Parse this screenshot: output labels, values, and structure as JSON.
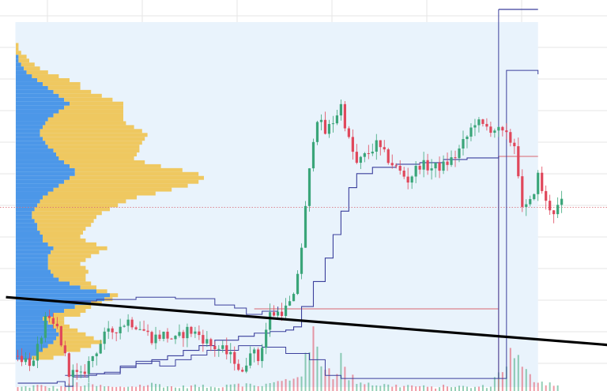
{
  "chart_data": {
    "type": "candlestick",
    "title": "",
    "xlabel": "",
    "ylabel": "",
    "ylim": [
      60,
      560
    ],
    "x_count": 150,
    "grid": true,
    "legend": "none",
    "colors": {
      "up": "#3aa579",
      "down": "#e0475b",
      "profile_up": "#4c97e8",
      "profile_down": "#efc860",
      "band": "#3b3f9c",
      "trendline": "#000000",
      "level_line": "#d9646e",
      "grid": "#e6e6e6",
      "session_bg": "#e9f3fc"
    },
    "price_path": [
      [
        0,
        105
      ],
      [
        4,
        95
      ],
      [
        7,
        150
      ],
      [
        10,
        140
      ],
      [
        13,
        85
      ],
      [
        16,
        78
      ],
      [
        19,
        105
      ],
      [
        22,
        130
      ],
      [
        25,
        140
      ],
      [
        28,
        150
      ],
      [
        31,
        142
      ],
      [
        34,
        128
      ],
      [
        37,
        132
      ],
      [
        40,
        125
      ],
      [
        43,
        138
      ],
      [
        46,
        132
      ],
      [
        49,
        118
      ],
      [
        52,
        112
      ],
      [
        55,
        100
      ],
      [
        57,
        80
      ],
      [
        59,
        115
      ],
      [
        61,
        100
      ],
      [
        64,
        158
      ],
      [
        66,
        160
      ],
      [
        68,
        165
      ],
      [
        70,
        178
      ],
      [
        72,
        245
      ],
      [
        74,
        340
      ],
      [
        75,
        385
      ],
      [
        76,
        410
      ],
      [
        78,
        390
      ],
      [
        80,
        405
      ],
      [
        82,
        425
      ],
      [
        84,
        380
      ],
      [
        86,
        350
      ],
      [
        88,
        360
      ],
      [
        91,
        375
      ],
      [
        93,
        362
      ],
      [
        96,
        345
      ],
      [
        99,
        330
      ],
      [
        102,
        350
      ],
      [
        105,
        345
      ],
      [
        108,
        348
      ],
      [
        111,
        360
      ],
      [
        114,
        385
      ],
      [
        116,
        405
      ],
      [
        118,
        398
      ],
      [
        121,
        395
      ],
      [
        124,
        385
      ],
      [
        126,
        375
      ],
      [
        127,
        340
      ],
      [
        128,
        290
      ],
      [
        130,
        300
      ],
      [
        132,
        335
      ],
      [
        134,
        300
      ],
      [
        136,
        290
      ],
      [
        138,
        300
      ]
    ],
    "vwap_line": [
      [
        0,
        70
      ],
      [
        10,
        72
      ],
      [
        12,
        66
      ],
      [
        14,
        78
      ],
      [
        18,
        82
      ],
      [
        22,
        84
      ],
      [
        26,
        90
      ],
      [
        30,
        95
      ],
      [
        34,
        100
      ],
      [
        38,
        105
      ],
      [
        42,
        112
      ],
      [
        46,
        118
      ],
      [
        50,
        125
      ],
      [
        56,
        130
      ],
      [
        60,
        134
      ],
      [
        64,
        136
      ],
      [
        68,
        138
      ],
      [
        70,
        142
      ],
      [
        72,
        168
      ],
      [
        75,
        200
      ],
      [
        78,
        230
      ],
      [
        80,
        260
      ],
      [
        82,
        290
      ],
      [
        84,
        320
      ],
      [
        86,
        338
      ],
      [
        90,
        346
      ],
      [
        96,
        350
      ],
      [
        102,
        352
      ],
      [
        108,
        356
      ],
      [
        114,
        358
      ],
      [
        122,
        360
      ]
    ],
    "upper_band": [
      [
        12,
        175
      ],
      [
        20,
        177
      ],
      [
        30,
        180
      ],
      [
        40,
        178
      ],
      [
        50,
        170
      ],
      [
        55,
        166
      ],
      [
        58,
        158
      ],
      [
        62,
        162
      ],
      [
        66,
        168
      ]
    ],
    "lower_band": [
      [
        12,
        80
      ],
      [
        20,
        82
      ],
      [
        26,
        92
      ],
      [
        30,
        98
      ],
      [
        36,
        92
      ],
      [
        40,
        100
      ],
      [
        44,
        106
      ],
      [
        48,
        112
      ],
      [
        56,
        118
      ],
      [
        62,
        116
      ],
      [
        68,
        108
      ],
      [
        74,
        100
      ],
      [
        78,
        80
      ],
      [
        82,
        76
      ],
      [
        122,
        76
      ],
      [
        124,
        470
      ],
      [
        132,
        465
      ]
    ],
    "trendline": [
      [
        -3,
        180
      ],
      [
        152,
        118
      ]
    ],
    "level_line": {
      "y": 295,
      "x_start": 0,
      "x_end": 152
    },
    "vertical_level": {
      "x": 122,
      "y_start": 60,
      "y_end": 360
    },
    "session_box": {
      "x_start": 0,
      "x_end": 132
    },
    "volume_profile": {
      "y_start": 100,
      "step": 5,
      "buy": [
        6,
        8,
        10,
        12,
        14,
        15,
        16,
        15,
        14,
        12,
        10,
        14,
        18,
        22,
        28,
        33,
        35,
        30,
        24,
        20,
        16,
        14,
        13,
        12,
        12,
        12,
        12,
        13,
        14,
        12,
        10,
        10,
        9,
        8,
        8,
        7,
        6,
        6,
        7,
        8,
        9,
        10,
        12,
        14,
        16,
        18,
        20,
        22,
        22,
        20,
        18,
        16,
        15,
        14,
        12,
        11,
        10,
        9,
        9,
        10,
        11,
        12,
        14,
        16,
        18,
        20,
        18,
        16,
        14,
        12,
        10,
        8,
        6,
        4,
        3,
        2,
        1,
        1,
        0,
        0,
        0
      ],
      "sell": [
        8,
        10,
        14,
        16,
        18,
        14,
        10,
        8,
        6,
        6,
        8,
        10,
        8,
        6,
        4,
        3,
        3,
        4,
        6,
        8,
        10,
        12,
        14,
        14,
        12,
        14,
        16,
        18,
        20,
        18,
        16,
        14,
        16,
        18,
        20,
        22,
        24,
        26,
        28,
        30,
        32,
        35,
        40,
        44,
        48,
        50,
        50,
        46,
        40,
        34,
        30,
        28,
        30,
        32,
        34,
        36,
        38,
        40,
        38,
        34,
        30,
        28,
        26,
        24,
        22,
        20,
        18,
        16,
        14,
        12,
        14,
        12,
        10,
        8,
        6,
        5,
        4,
        3,
        2,
        1,
        1
      ]
    },
    "volume": [
      [
        0,
        2
      ],
      [
        5,
        3
      ],
      [
        10,
        2
      ],
      [
        15,
        4
      ],
      [
        20,
        3
      ],
      [
        25,
        2
      ],
      [
        30,
        3
      ],
      [
        35,
        4
      ],
      [
        40,
        2
      ],
      [
        45,
        3
      ],
      [
        50,
        2
      ],
      [
        55,
        5
      ],
      [
        60,
        3
      ],
      [
        64,
        4
      ],
      [
        68,
        6
      ],
      [
        70,
        8
      ],
      [
        72,
        12
      ],
      [
        73,
        16
      ],
      [
        74,
        22
      ],
      [
        75,
        30
      ],
      [
        76,
        26
      ],
      [
        77,
        20
      ],
      [
        78,
        14
      ],
      [
        80,
        10
      ],
      [
        82,
        18
      ],
      [
        83,
        12
      ],
      [
        84,
        8
      ],
      [
        86,
        6
      ],
      [
        90,
        4
      ],
      [
        95,
        3
      ],
      [
        100,
        3
      ],
      [
        105,
        2
      ],
      [
        110,
        3
      ],
      [
        115,
        2
      ],
      [
        120,
        3
      ],
      [
        124,
        18
      ],
      [
        126,
        22
      ],
      [
        128,
        12
      ],
      [
        130,
        8
      ],
      [
        132,
        6
      ],
      [
        136,
        4
      ]
    ]
  }
}
